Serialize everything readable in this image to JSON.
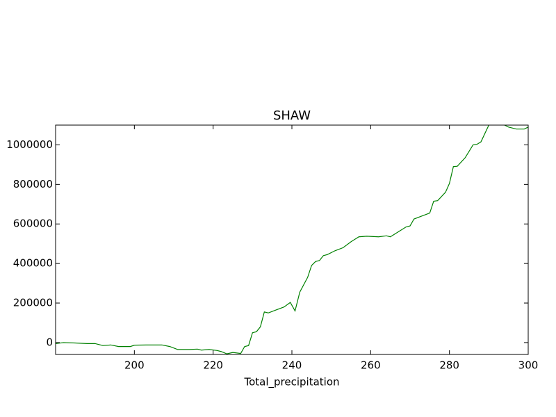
{
  "chart_data": {
    "type": "line",
    "title": "SHAW",
    "x_label": "Total_precipitation",
    "xlim": [
      180,
      300
    ],
    "ylim": [
      -60000,
      1100000
    ],
    "xticks": [
      200,
      220,
      240,
      260,
      280,
      300
    ],
    "yticks": [
      0,
      200000,
      400000,
      600000,
      800000,
      1000000
    ],
    "series": [
      {
        "name": "SHAW",
        "color": "#008000",
        "x": [
          180,
          182,
          185,
          188,
          190,
          192,
          194,
          196,
          199,
          200,
          203,
          207,
          209,
          211,
          214,
          216,
          217,
          219,
          221,
          222,
          223.5,
          225,
          227,
          228,
          229,
          230,
          231,
          232,
          233,
          234,
          236,
          238,
          239.6,
          240.8,
          242,
          244,
          245,
          246,
          247,
          248,
          249,
          251,
          253,
          255,
          257,
          259,
          262,
          264,
          265,
          267,
          269,
          270,
          271,
          273,
          275,
          276,
          277,
          279,
          280,
          281,
          282,
          284,
          286,
          287,
          288,
          290,
          292,
          294,
          295,
          297,
          299,
          300
        ],
        "values": [
          -5000,
          0,
          -2000,
          -5000,
          -5000,
          -15000,
          -12000,
          -20000,
          -20000,
          -13000,
          -12000,
          -12000,
          -20000,
          -35000,
          -35000,
          -33000,
          -38000,
          -35000,
          -40000,
          -45000,
          -57000,
          -50000,
          -55000,
          -20000,
          -15000,
          50000,
          55000,
          80000,
          155000,
          150000,
          165000,
          180000,
          203000,
          160000,
          255000,
          330000,
          390000,
          410000,
          415000,
          440000,
          445000,
          465000,
          480000,
          510000,
          535000,
          538000,
          535000,
          540000,
          535000,
          560000,
          585000,
          590000,
          625000,
          640000,
          655000,
          715000,
          718000,
          760000,
          805000,
          890000,
          892000,
          935000,
          1000000,
          1003000,
          1015000,
          1100000,
          1120000,
          1100000,
          1090000,
          1080000,
          1080000,
          1090000
        ]
      }
    ]
  }
}
